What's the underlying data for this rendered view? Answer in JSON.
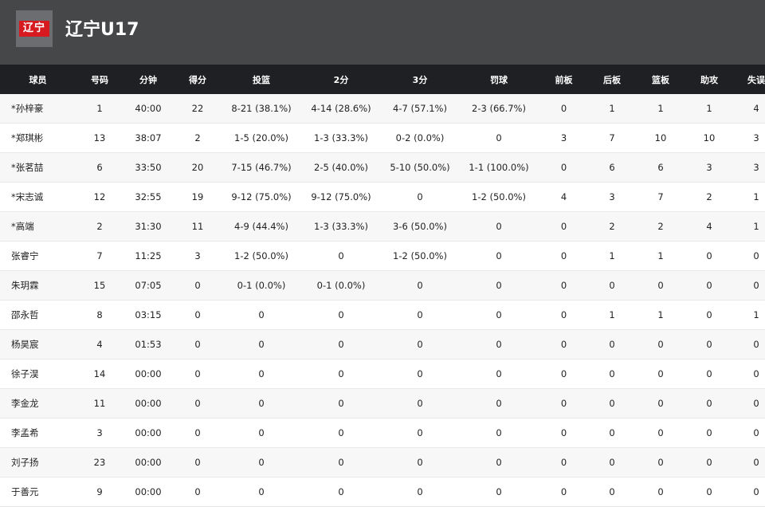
{
  "team": {
    "logo_text": "辽宁",
    "name": "辽宁U17"
  },
  "columns": [
    "球员",
    "号码",
    "分钟",
    "得分",
    "投篮",
    "2分",
    "3分",
    "罚球",
    "前板",
    "后板",
    "篮板",
    "助攻",
    "失误"
  ],
  "players": [
    [
      "*孙梓豪",
      "1",
      "40:00",
      "22",
      "8-21 (38.1%)",
      "4-14 (28.6%)",
      "4-7 (57.1%)",
      "2-3 (66.7%)",
      "0",
      "1",
      "1",
      "1",
      "4"
    ],
    [
      "*郑琪彬",
      "13",
      "38:07",
      "2",
      "1-5 (20.0%)",
      "1-3 (33.3%)",
      "0-2 (0.0%)",
      "0",
      "3",
      "7",
      "10",
      "10",
      "3"
    ],
    [
      "*张茗喆",
      "6",
      "33:50",
      "20",
      "7-15 (46.7%)",
      "2-5 (40.0%)",
      "5-10 (50.0%)",
      "1-1 (100.0%)",
      "0",
      "6",
      "6",
      "3",
      "3"
    ],
    [
      "*宋志诚",
      "12",
      "32:55",
      "19",
      "9-12 (75.0%)",
      "9-12 (75.0%)",
      "0",
      "1-2 (50.0%)",
      "4",
      "3",
      "7",
      "2",
      "1"
    ],
    [
      "*高端",
      "2",
      "31:30",
      "11",
      "4-9 (44.4%)",
      "1-3 (33.3%)",
      "3-6 (50.0%)",
      "0",
      "0",
      "2",
      "2",
      "4",
      "1"
    ],
    [
      "张睿宁",
      "7",
      "11:25",
      "3",
      "1-2 (50.0%)",
      "0",
      "1-2 (50.0%)",
      "0",
      "0",
      "1",
      "1",
      "0",
      "0"
    ],
    [
      "朱玥霖",
      "15",
      "07:05",
      "0",
      "0-1 (0.0%)",
      "0-1 (0.0%)",
      "0",
      "0",
      "0",
      "0",
      "0",
      "0",
      "0"
    ],
    [
      "邵永哲",
      "8",
      "03:15",
      "0",
      "0",
      "0",
      "0",
      "0",
      "0",
      "1",
      "1",
      "0",
      "1"
    ],
    [
      "杨昊宸",
      "4",
      "01:53",
      "0",
      "0",
      "0",
      "0",
      "0",
      "0",
      "0",
      "0",
      "0",
      "0"
    ],
    [
      "徐子淏",
      "14",
      "00:00",
      "0",
      "0",
      "0",
      "0",
      "0",
      "0",
      "0",
      "0",
      "0",
      "0"
    ],
    [
      "李金龙",
      "11",
      "00:00",
      "0",
      "0",
      "0",
      "0",
      "0",
      "0",
      "0",
      "0",
      "0",
      "0"
    ],
    [
      "李孟希",
      "3",
      "00:00",
      "0",
      "0",
      "0",
      "0",
      "0",
      "0",
      "0",
      "0",
      "0",
      "0"
    ],
    [
      "刘子扬",
      "23",
      "00:00",
      "0",
      "0",
      "0",
      "0",
      "0",
      "0",
      "0",
      "0",
      "0",
      "0"
    ],
    [
      "于善元",
      "9",
      "00:00",
      "0",
      "0",
      "0",
      "0",
      "0",
      "0",
      "0",
      "0",
      "0",
      "0"
    ]
  ]
}
